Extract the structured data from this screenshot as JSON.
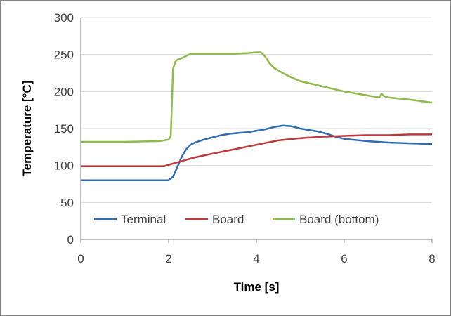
{
  "chart_data": {
    "type": "line",
    "title": "",
    "xlabel": "Time [s]",
    "ylabel": "Temperature [°C]",
    "xlim": [
      0,
      8
    ],
    "ylim": [
      0,
      300
    ],
    "xticks": [
      0,
      2,
      4,
      6,
      8
    ],
    "yticks": [
      0,
      50,
      100,
      150,
      200,
      250,
      300
    ],
    "xtick_labels": [
      "0",
      "2",
      "4",
      "6",
      "8"
    ],
    "ytick_labels": [
      "0",
      "50",
      "100",
      "150",
      "200",
      "250",
      "300"
    ],
    "grid": "horizontal",
    "legend_position": "bottom-inside",
    "series": [
      {
        "name": "Terminal",
        "color": "#2e6db4",
        "x": [
          0,
          1.0,
          1.8,
          2.0,
          2.1,
          2.2,
          2.3,
          2.4,
          2.5,
          2.6,
          2.8,
          3.0,
          3.2,
          3.4,
          3.6,
          3.8,
          4.0,
          4.2,
          4.4,
          4.6,
          4.8,
          5.0,
          5.2,
          5.4,
          5.6,
          5.8,
          6.0,
          6.5,
          7.0,
          7.5,
          8.0
        ],
        "y": [
          80,
          80,
          80,
          80,
          85,
          98,
          112,
          122,
          128,
          131,
          135,
          138,
          141,
          143,
          144,
          145,
          147,
          149,
          152,
          154,
          153,
          150,
          148,
          146,
          143,
          139,
          136,
          133,
          131,
          130,
          129
        ]
      },
      {
        "name": "Board",
        "color": "#c0393a",
        "x": [
          0,
          1.0,
          1.9,
          2.0,
          2.3,
          2.6,
          3.0,
          3.5,
          4.0,
          4.5,
          5.0,
          5.5,
          6.0,
          6.5,
          7.0,
          7.5,
          8.0
        ],
        "y": [
          99,
          99,
          99,
          101,
          106,
          111,
          116,
          122,
          128,
          134,
          137,
          139,
          140,
          141,
          141,
          142,
          142
        ]
      },
      {
        "name": "Board (bottom)",
        "color": "#8fba4c",
        "x": [
          0,
          1.0,
          1.8,
          2.0,
          2.05,
          2.1,
          2.15,
          2.2,
          2.3,
          2.4,
          2.5,
          2.6,
          3.0,
          3.5,
          3.8,
          4.0,
          4.1,
          4.2,
          4.3,
          4.4,
          4.6,
          4.8,
          5.0,
          5.5,
          6.0,
          6.5,
          6.8,
          6.85,
          6.9,
          7.0,
          7.5,
          8.0
        ],
        "y": [
          132,
          132,
          133,
          135,
          140,
          230,
          240,
          243,
          245,
          248,
          251,
          251,
          251,
          251,
          252,
          253,
          253,
          247,
          238,
          232,
          225,
          219,
          214,
          207,
          200,
          195,
          192,
          197,
          194,
          192,
          189,
          185
        ]
      }
    ]
  }
}
